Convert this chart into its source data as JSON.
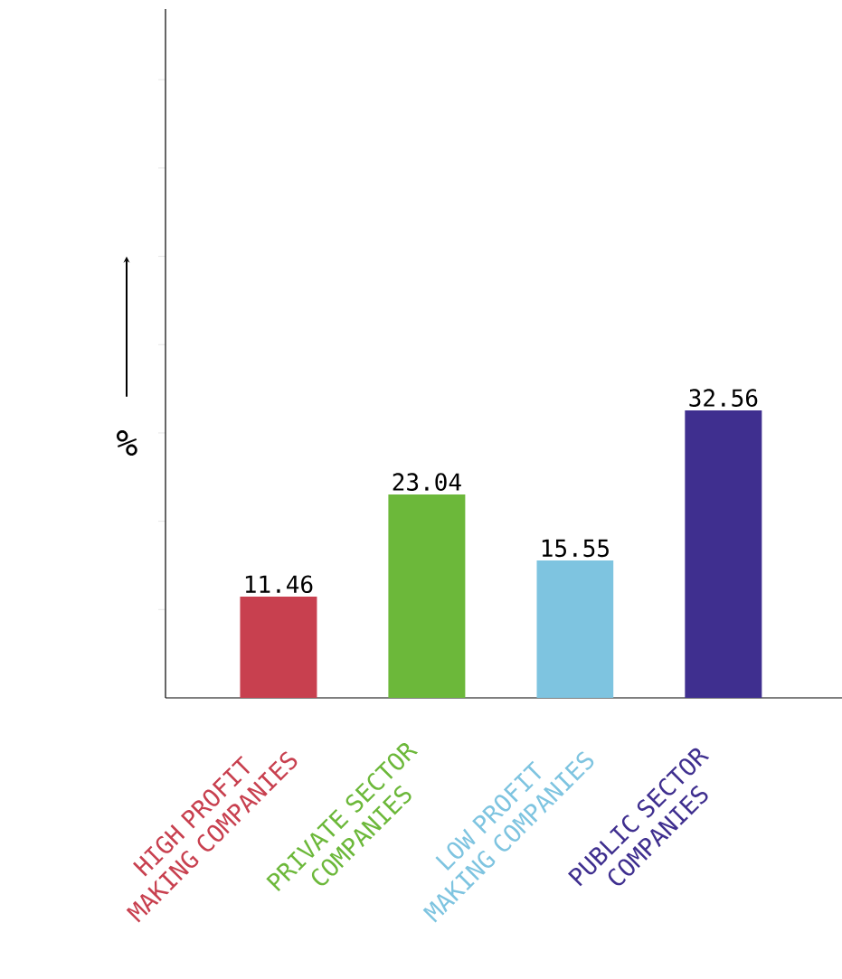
{
  "chart_data": {
    "type": "bar",
    "ylabel": "%",
    "categories": [
      "HIGH PROFIT MAKING COMPANIES",
      "PRIVATE SECTOR COMPANIES",
      "LOW PROFIT MAKING COMPANIES",
      "PUBLIC SECTOR COMPANIES"
    ],
    "values": [
      11.46,
      23.04,
      15.55,
      32.56
    ],
    "colors": [
      "#c8404f",
      "#6cb83a",
      "#7ec4e0",
      "#3f2f8f"
    ],
    "ylim": [
      0,
      78
    ],
    "yticks": [
      {
        "value": 10,
        "label": null
      },
      {
        "value": 20,
        "label": null
      },
      {
        "value": 30,
        "label": null
      },
      {
        "value": 40,
        "label": null
      },
      {
        "value": 50,
        "label": null
      },
      {
        "value": 60,
        "label": null
      },
      {
        "value": 70,
        "label": null
      }
    ],
    "data_labels": true
  }
}
